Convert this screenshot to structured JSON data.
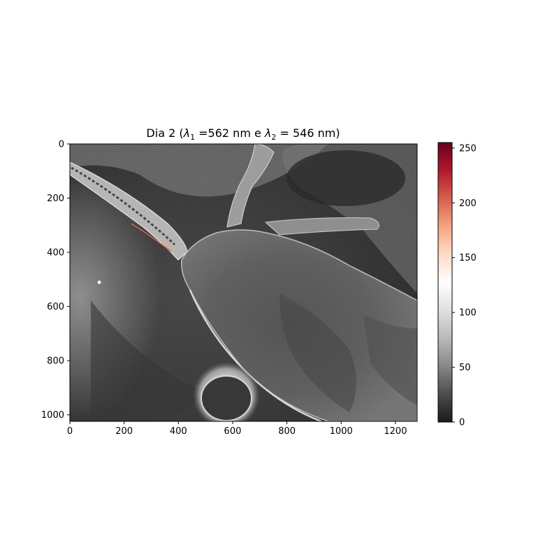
{
  "chart_data": {
    "type": "heatmap",
    "title_parts": {
      "prefix": "Dia 2 (",
      "lambda": "λ",
      "sub1": "1",
      "mid": " =562 nm e ",
      "sub2": "2",
      "suffix": " = 546 nm)"
    },
    "xlabel": "",
    "ylabel": "",
    "image_extent": {
      "xlim": [
        0,
        1280
      ],
      "ylim": [
        1024,
        0
      ]
    },
    "x_ticks": [
      0,
      200,
      400,
      600,
      800,
      1000,
      1200
    ],
    "y_ticks": [
      0,
      200,
      400,
      600,
      800,
      1000
    ],
    "colorbar": {
      "range": [
        0,
        255
      ],
      "ticks": [
        0,
        50,
        100,
        150,
        200,
        250
      ],
      "colormap": "RdGy_r",
      "colors": [
        "#1a1a1a",
        "#4d4d4d",
        "#878787",
        "#bababa",
        "#e0e0e0",
        "#ffffff",
        "#fddbc7",
        "#f4a582",
        "#d6604d",
        "#b2182b",
        "#67001f"
      ]
    },
    "image_features": [
      {
        "name": "upper-antenna",
        "description_color": "#c8c8c8"
      },
      {
        "name": "body",
        "description_color": "#5a5a5a"
      },
      {
        "name": "compound-eye",
        "description_color": "#2b2b2b"
      },
      {
        "name": "bright-speck",
        "description_color": "#ffffff"
      }
    ]
  }
}
